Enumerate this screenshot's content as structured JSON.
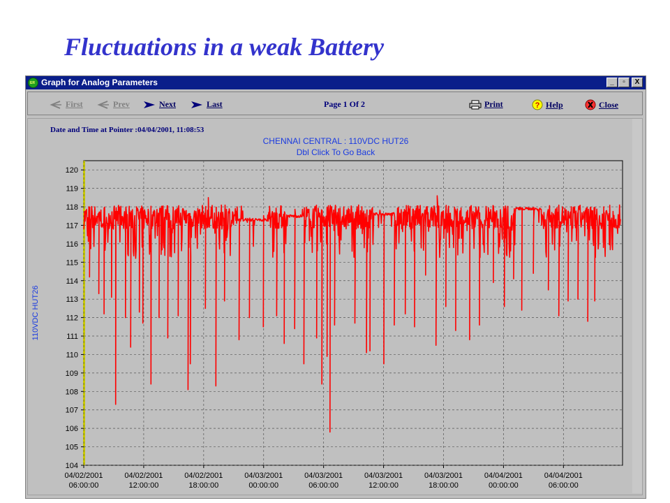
{
  "slide_title": "Fluctuations in a weak Battery",
  "window": {
    "title": "Graph for Analog Parameters",
    "app_icon_text": "ER",
    "buttons": {
      "minimize": "_",
      "restore": "▫",
      "close": "X"
    }
  },
  "toolbar": {
    "first": "First",
    "prev": "Prev",
    "next": "Next",
    "last": "Last",
    "page": "Page 1 Of 2",
    "print": "Print",
    "help": "Help",
    "close": "Close"
  },
  "graph": {
    "pointer_info": "Date and Time at Pointer :04/04/2001, 11:08:53",
    "title": "CHENNAI CENTRAL : 110VDC HUT26",
    "subtitle": "Dbl Click To Go Back"
  },
  "colors": {
    "series": "#ff0000",
    "title_blue": "#3333cc",
    "window_titlebar": "#0a1e8a",
    "chart_text": "#1a3ae0"
  },
  "chart_data": {
    "type": "line",
    "title": "CHENNAI CENTRAL : 110VDC HUT26",
    "subtitle": "Dbl Click To Go Back",
    "ylabel": "110VDC HUT26",
    "xlabel": "",
    "ylim": [
      104,
      120.5
    ],
    "yticks": [
      104,
      105,
      106,
      107,
      108,
      109,
      110,
      111,
      112,
      113,
      114,
      115,
      116,
      117,
      118,
      119,
      120
    ],
    "x_range_hours": [
      0,
      93
    ],
    "xtick_labels": [
      [
        "04/02/2001",
        "06:00:00"
      ],
      [
        "04/02/2001",
        "12:00:00"
      ],
      [
        "04/02/2001",
        "18:00:00"
      ],
      [
        "04/03/2001",
        "00:00:00"
      ],
      [
        "04/03/2001",
        "06:00:00"
      ],
      [
        "04/03/2001",
        "12:00:00"
      ],
      [
        "04/03/2001",
        "18:00:00"
      ],
      [
        "04/04/2001",
        "00:00:00"
      ],
      [
        "04/04/2001",
        "06:00:00"
      ]
    ],
    "grid": true,
    "series_color": "#ff0000",
    "baseline_band": [
      116.8,
      118.1
    ],
    "dips": [
      [
        1.0,
        114.2
      ],
      [
        2.6,
        113.3
      ],
      [
        3.5,
        112.2
      ],
      [
        4.8,
        113.1
      ],
      [
        5.5,
        107.3
      ],
      [
        7.2,
        112.0
      ],
      [
        8.1,
        110.4
      ],
      [
        9.6,
        112.3
      ],
      [
        10.2,
        111.7
      ],
      [
        11.6,
        108.4
      ],
      [
        13.0,
        112.0
      ],
      [
        14.5,
        110.9
      ],
      [
        16.3,
        112.1
      ],
      [
        18.0,
        108.1
      ],
      [
        18.4,
        109.5
      ],
      [
        21.0,
        112.5
      ],
      [
        22.8,
        108.3
      ],
      [
        24.3,
        112.9
      ],
      [
        26.8,
        110.8
      ],
      [
        28.6,
        112.0
      ],
      [
        31.0,
        111.5
      ],
      [
        33.3,
        112.1
      ],
      [
        34.6,
        110.6
      ],
      [
        36.4,
        111.4
      ],
      [
        38.0,
        109.5
      ],
      [
        40.2,
        110.9
      ],
      [
        41.1,
        108.4
      ],
      [
        42.0,
        109.9
      ],
      [
        42.5,
        105.8
      ],
      [
        43.3,
        111.6
      ],
      [
        46.8,
        111.7
      ],
      [
        48.8,
        110.1
      ],
      [
        49.4,
        110.2
      ],
      [
        51.8,
        109.5
      ],
      [
        53.6,
        111.6
      ],
      [
        55.5,
        112.2
      ],
      [
        57.1,
        111.5
      ],
      [
        59.0,
        114.3
      ],
      [
        60.8,
        110.5
      ],
      [
        62.5,
        112.6
      ],
      [
        64.2,
        111.3
      ],
      [
        66.6,
        110.8
      ],
      [
        68.3,
        111.6
      ],
      [
        70.7,
        113.9
      ],
      [
        72.6,
        112.6
      ],
      [
        74.2,
        114.1
      ],
      [
        75.6,
        112.4
      ],
      [
        77.6,
        114.4
      ],
      [
        80.2,
        113.5
      ],
      [
        82.0,
        112.1
      ],
      [
        83.6,
        112.9
      ],
      [
        85.3,
        113.0
      ],
      [
        87.0,
        111.8
      ],
      [
        88.2,
        112.9
      ],
      [
        89.7,
        115.8
      ]
    ],
    "flat_segments": [
      [
        26.5,
        32.0,
        117.3
      ],
      [
        35.0,
        38.0,
        117.5
      ],
      [
        50.0,
        53.5,
        117.6
      ],
      [
        74.5,
        79.0,
        117.9
      ]
    ],
    "peaks": [
      [
        21.5,
        118.5
      ],
      [
        61.0,
        118.6
      ]
    ]
  }
}
